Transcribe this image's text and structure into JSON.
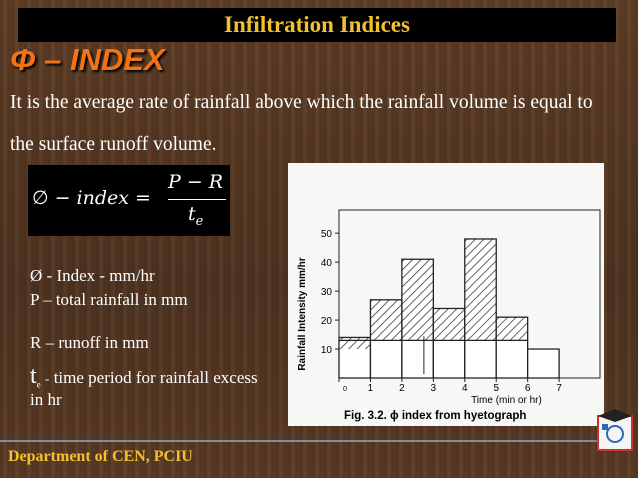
{
  "header": {
    "title": "Infiltration Indices"
  },
  "heading": "Φ – INDEX",
  "definition": "It is the average rate of rainfall above which the rainfall volume is equal to the surface runoff volume.",
  "formula": {
    "lhs": "∅ − 𝑖𝑛𝑑𝑒𝑥 =",
    "numerator": "𝑃 − 𝑅",
    "denominator": "𝑡",
    "denominator_subscript": "𝑒"
  },
  "terms": [
    "Ø - Index - mm/hr",
    "P – total rainfall in mm",
    "R – runoff in mm"
  ],
  "last_term": {
    "symbol": "t",
    "subscript": "e",
    "equals": "=",
    "text": "time period for rainfall excess in hr"
  },
  "chart_data": {
    "type": "histogram",
    "y_label": "Rainfall Intensity mm/hr",
    "x_label": "Time (min or hr)",
    "caption": "Fig. 3.2. ϕ index from hyetograph",
    "bins": [
      0,
      1,
      2,
      3,
      4,
      5,
      6,
      7
    ],
    "values": [
      14,
      27,
      41,
      24,
      48,
      21,
      10
    ],
    "phi_index": 13,
    "xlim": [
      0,
      8.3
    ],
    "ylim": [
      0,
      58
    ],
    "xticks": [
      0,
      1,
      2,
      3,
      4,
      5,
      6,
      7
    ],
    "yticks": [
      10,
      20,
      30,
      40,
      50
    ]
  },
  "footer": "Department of CEN, PCIU"
}
